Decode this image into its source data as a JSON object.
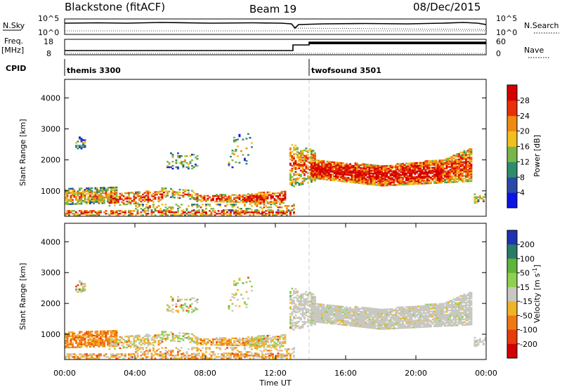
{
  "header": {
    "station": "Blackstone (fitACF)",
    "beam": "Beam 19",
    "date": "08/Dec/2015"
  },
  "summary_panel": {
    "nsky_label": "N.Sky",
    "nsearch_label": "N.Search",
    "freq_label_1": "Freq.",
    "freq_label_2": "[MHz]",
    "nave_label": "Nave",
    "cpid_label": "CPID",
    "left_ticks_top": [
      "10^5",
      "10^0"
    ],
    "right_ticks_top": [
      "10^5",
      "10^0"
    ],
    "left_ticks_freq": [
      "18",
      "8"
    ],
    "right_ticks_nave": [
      "60",
      "0"
    ],
    "cpid_segments": [
      {
        "name": "themis 3300",
        "start_hr": 0.0,
        "end_hr": 14.0
      },
      {
        "name": "twofsound 3501",
        "start_hr": 14.0,
        "end_hr": 24.0
      }
    ]
  },
  "chart_data": [
    {
      "type": "heatmap",
      "panel": "power",
      "ylabel": "Slant Range [km]",
      "yticks": [
        "1000",
        "2000",
        "3000",
        "4000"
      ],
      "ylim": [
        180,
        4600
      ],
      "xlim": [
        0,
        24
      ],
      "colorbar_label": "Power [dB]",
      "colorbar_ticks": [
        "4",
        "8",
        "12",
        "16",
        "20",
        "24",
        "28"
      ],
      "colors": [
        "#0a14e6",
        "#2a4aa8",
        "#2f8c6a",
        "#79b64a",
        "#f0c020",
        "#f08a10",
        "#e8300a",
        "#d40000"
      ]
    },
    {
      "type": "heatmap",
      "panel": "velocity",
      "ylabel": "Slant Range [km]",
      "yticks": [
        "1000",
        "2000",
        "3000",
        "4000"
      ],
      "ylim": [
        180,
        4600
      ],
      "xlim": [
        0,
        24
      ],
      "xlabel": "Time UT",
      "xticks": [
        "00:00",
        "04:00",
        "08:00",
        "12:00",
        "16:00",
        "20:00",
        "00:00"
      ],
      "colorbar_label": "Velocity [m s",
      "colorbar_label_sup": "-1",
      "colorbar_label_end": "]",
      "colorbar_ticks": [
        "200",
        "100",
        "50",
        "15",
        "-15",
        "-50",
        "-100",
        "-200"
      ],
      "colors": [
        "#1e32b4",
        "#2a7a68",
        "#5fb43c",
        "#90d050",
        "#c8c8c0",
        "#f0b428",
        "#f07814",
        "#e83c0c",
        "#d20000"
      ]
    }
  ]
}
